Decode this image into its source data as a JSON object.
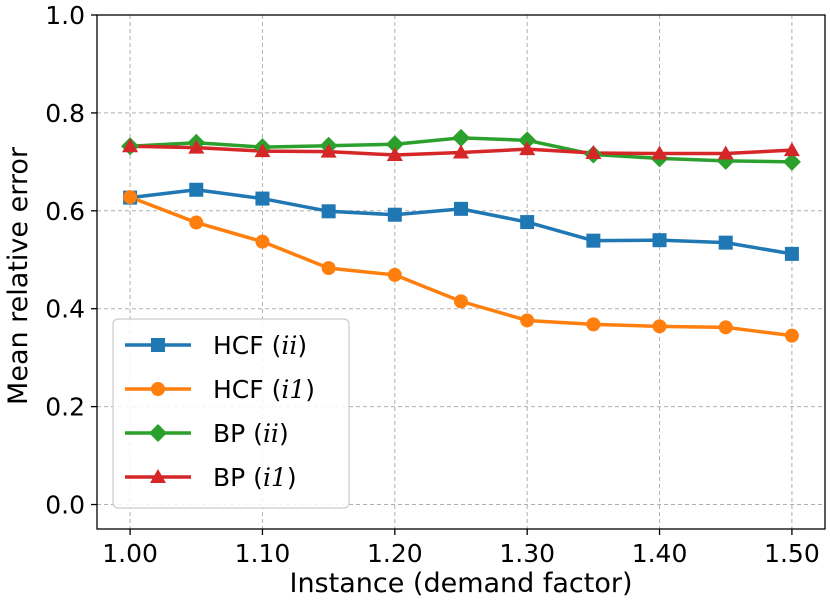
{
  "chart_data": {
    "type": "line",
    "xlabel": "Instance (demand factor)",
    "ylabel": "Mean relative error",
    "xlim": [
      0.975,
      1.525
    ],
    "ylim": [
      -0.05,
      1.0
    ],
    "x": [
      1.0,
      1.05,
      1.1,
      1.15,
      1.2,
      1.25,
      1.3,
      1.35,
      1.4,
      1.45,
      1.5
    ],
    "xticks": [
      1.0,
      1.1,
      1.2,
      1.3,
      1.4,
      1.5
    ],
    "xtick_labels": [
      "1.00",
      "1.10",
      "1.20",
      "1.30",
      "1.40",
      "1.50"
    ],
    "yticks": [
      0.0,
      0.2,
      0.4,
      0.6,
      0.8,
      1.0
    ],
    "ytick_labels": [
      "0.0",
      "0.2",
      "0.4",
      "0.6",
      "0.8",
      "1.0"
    ],
    "grid": true,
    "legend_position": "lower-left",
    "series": [
      {
        "name_prefix": "HCF (",
        "name_math": "ii",
        "name_suffix": ")",
        "color": "#1f77b4",
        "marker": "square",
        "values": [
          0.627,
          0.643,
          0.625,
          0.599,
          0.592,
          0.604,
          0.577,
          0.539,
          0.54,
          0.535,
          0.512
        ]
      },
      {
        "name_prefix": "HCF (",
        "name_math": "i1",
        "name_suffix": ")",
        "color": "#ff7f0e",
        "marker": "circle",
        "values": [
          0.628,
          0.576,
          0.537,
          0.483,
          0.469,
          0.415,
          0.376,
          0.368,
          0.364,
          0.362,
          0.345
        ]
      },
      {
        "name_prefix": "BP (",
        "name_math": "ii",
        "name_suffix": ")",
        "color": "#2ca02c",
        "marker": "diamond",
        "values": [
          0.732,
          0.739,
          0.73,
          0.733,
          0.736,
          0.749,
          0.744,
          0.715,
          0.707,
          0.702,
          0.7
        ]
      },
      {
        "name_prefix": "BP (",
        "name_math": "i1",
        "name_suffix": ")",
        "color": "#d62728",
        "marker": "triangle",
        "values": [
          0.732,
          0.729,
          0.722,
          0.721,
          0.714,
          0.719,
          0.726,
          0.718,
          0.717,
          0.717,
          0.724
        ]
      }
    ]
  }
}
